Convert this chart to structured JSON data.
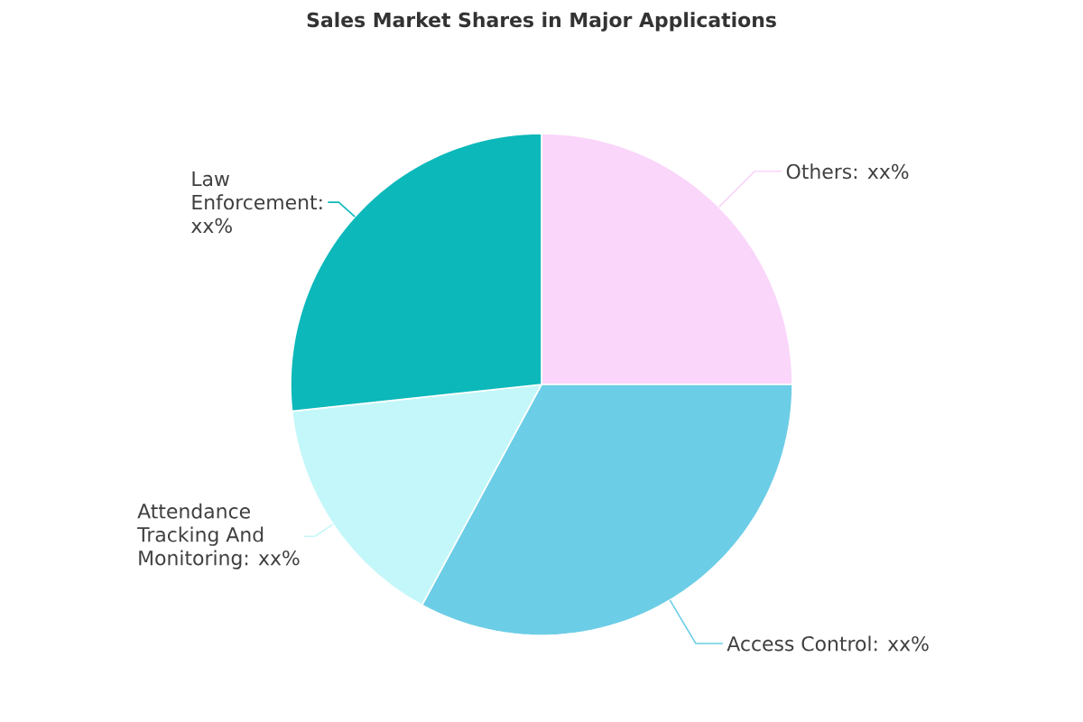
{
  "chart_data": {
    "type": "pie",
    "title": "Sales Market Shares in Major Applications",
    "categories": [
      "Others",
      "Access Control",
      "Attendance Tracking And Monitoring",
      "Law Enforcement"
    ],
    "values": [
      25,
      32.9,
      15.4,
      26.7
    ],
    "value_labels": [
      ": xx%",
      ": xx%",
      ": xx%",
      ": xx%"
    ],
    "colors": [
      "#fad6fa",
      "#6ccde6",
      "#c4f7f9",
      "#0cb8ba"
    ]
  }
}
